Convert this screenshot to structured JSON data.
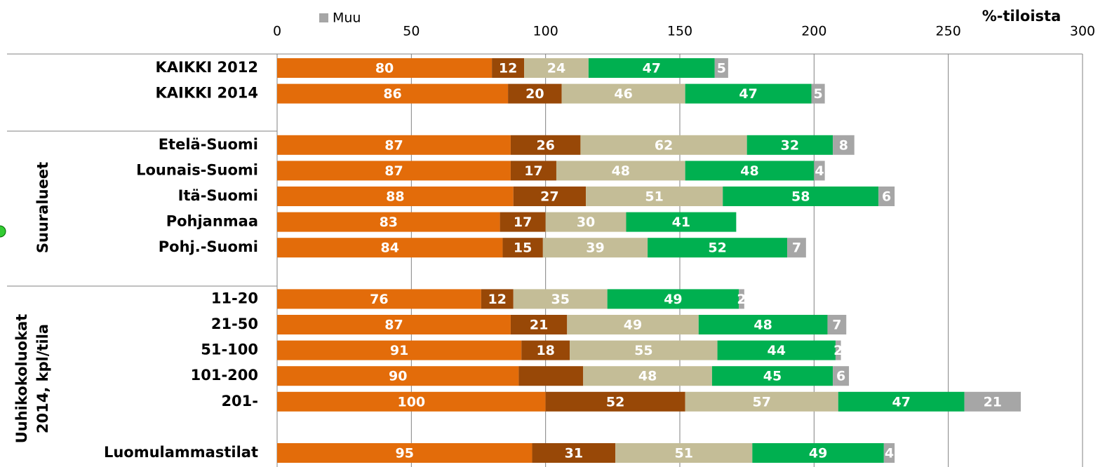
{
  "chart_data": {
    "type": "stacked-barh",
    "axis_label": "%-tiloista",
    "annotations": [
      "Suuralueet",
      "Uuhikokoluokat",
      "2014, kpl/tila"
    ],
    "categories": [
      "KAIKKI 2012",
      "KAIKKI 2014",
      null,
      "Etelä-Suomi",
      "Lounais-Suomi",
      "Itä-Suomi",
      "Pohjanmaa",
      "Pohj.-Suomi",
      null,
      "11-20",
      "21-50",
      "51-100",
      "101-200",
      "201-",
      null,
      "Luomulammastilat"
    ],
    "series": [
      {
        "color": "#e36c0a",
        "values": [
          80,
          86,
          null,
          87,
          87,
          88,
          83,
          84,
          null,
          76,
          87,
          91,
          90,
          100,
          null,
          95
        ]
      },
      {
        "color": "#984807",
        "values": [
          12,
          20,
          null,
          26,
          17,
          27,
          17,
          15,
          null,
          12,
          21,
          18,
          24,
          52,
          null,
          31
        ],
        "value_labels": [
          12,
          20,
          null,
          26,
          17,
          27,
          17,
          15,
          null,
          12,
          21,
          18,
          null,
          52,
          null,
          31
        ]
      },
      {
        "color": "#c4bd97",
        "values": [
          24,
          46,
          null,
          62,
          48,
          51,
          30,
          39,
          null,
          35,
          49,
          55,
          48,
          57,
          null,
          51
        ]
      },
      {
        "color": "#00b050",
        "values": [
          47,
          47,
          null,
          32,
          48,
          58,
          41,
          52,
          null,
          49,
          48,
          44,
          45,
          47,
          null,
          49
        ]
      },
      {
        "name": "Muu",
        "color": "#a6a6a6",
        "values": [
          5,
          5,
          null,
          8,
          4,
          6,
          null,
          7,
          null,
          2,
          7,
          2,
          6,
          21,
          null,
          4
        ]
      }
    ],
    "xlim": [
      0,
      300
    ],
    "xticks": [
      0,
      50,
      100,
      150,
      200,
      250,
      300
    ],
    "grid": true
  }
}
